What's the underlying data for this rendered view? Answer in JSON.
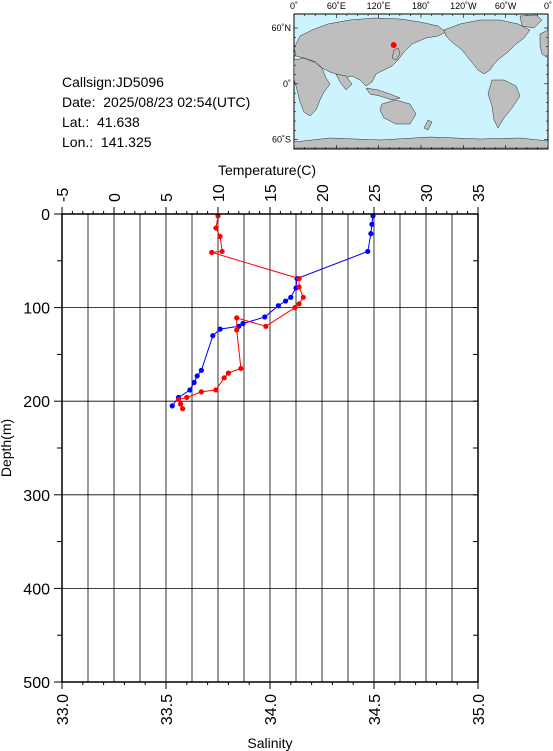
{
  "station": {
    "callsign_line": "Callsign:JD5096",
    "date_line": "Date:  2025/08/23 02:54(UTC)",
    "lat_line": "Lat.:  41.638",
    "lon_line": "Lon.:  141.325"
  },
  "map": {
    "top_ticks": [
      "0˚",
      "60˚E",
      "120˚E",
      "180˚",
      "120˚W",
      "60˚W",
      "0˚"
    ],
    "lat_ticks": [
      "60˚N",
      "0˚",
      "60˚S"
    ],
    "ocean_color": "#cdf3ff",
    "land_color": "#bebebe",
    "marker_color": "#ff0000",
    "marker": {
      "lon": 141.325,
      "lat": 41.638
    }
  },
  "chart_data": {
    "type": "line",
    "x_top": {
      "label": "Temperature(C)",
      "range": [
        -5,
        35
      ],
      "ticks": [
        "-5",
        "0",
        "5",
        "10",
        "15",
        "20",
        "25",
        "30",
        "35"
      ]
    },
    "x_bottom": {
      "label": "Salinity",
      "range": [
        33.0,
        35.0
      ],
      "ticks": [
        "33.0",
        "33.5",
        "34.0",
        "34.5",
        "35.0"
      ]
    },
    "y": {
      "label": "Depth(m)",
      "range": [
        0,
        500
      ],
      "inverted": true,
      "ticks": [
        "0",
        "100",
        "200",
        "300",
        "400",
        "500"
      ]
    },
    "grid": true,
    "series": [
      {
        "quantity": "temperature",
        "axis": "top",
        "color": "#0000ff",
        "points": [
          [
            24.9,
            2
          ],
          [
            24.8,
            11
          ],
          [
            24.7,
            21
          ],
          [
            24.4,
            40
          ],
          [
            17.6,
            69
          ],
          [
            17.5,
            79
          ],
          [
            17.0,
            89
          ],
          [
            16.5,
            93
          ],
          [
            15.8,
            98
          ],
          [
            14.5,
            110
          ],
          [
            12.4,
            117
          ],
          [
            12.0,
            120
          ],
          [
            10.2,
            123
          ],
          [
            9.5,
            130
          ],
          [
            8.4,
            167
          ],
          [
            8.0,
            173
          ],
          [
            7.7,
            180
          ],
          [
            7.3,
            188
          ],
          [
            6.2,
            196
          ],
          [
            5.6,
            205
          ]
        ]
      },
      {
        "quantity": "salinity",
        "axis": "bottom",
        "color": "#ff0000",
        "points": [
          [
            33.75,
            2
          ],
          [
            33.74,
            15
          ],
          [
            33.76,
            24
          ],
          [
            33.77,
            40
          ],
          [
            33.72,
            41
          ],
          [
            34.14,
            69
          ],
          [
            34.14,
            78
          ],
          [
            34.16,
            89
          ],
          [
            34.14,
            96
          ],
          [
            34.12,
            100
          ],
          [
            33.98,
            120
          ],
          [
            33.84,
            111
          ],
          [
            33.84,
            124
          ],
          [
            33.86,
            165
          ],
          [
            33.8,
            170
          ],
          [
            33.78,
            175
          ],
          [
            33.74,
            188
          ],
          [
            33.67,
            190
          ],
          [
            33.6,
            196
          ],
          [
            33.56,
            198
          ],
          [
            33.57,
            203
          ],
          [
            33.58,
            208
          ]
        ]
      }
    ]
  }
}
